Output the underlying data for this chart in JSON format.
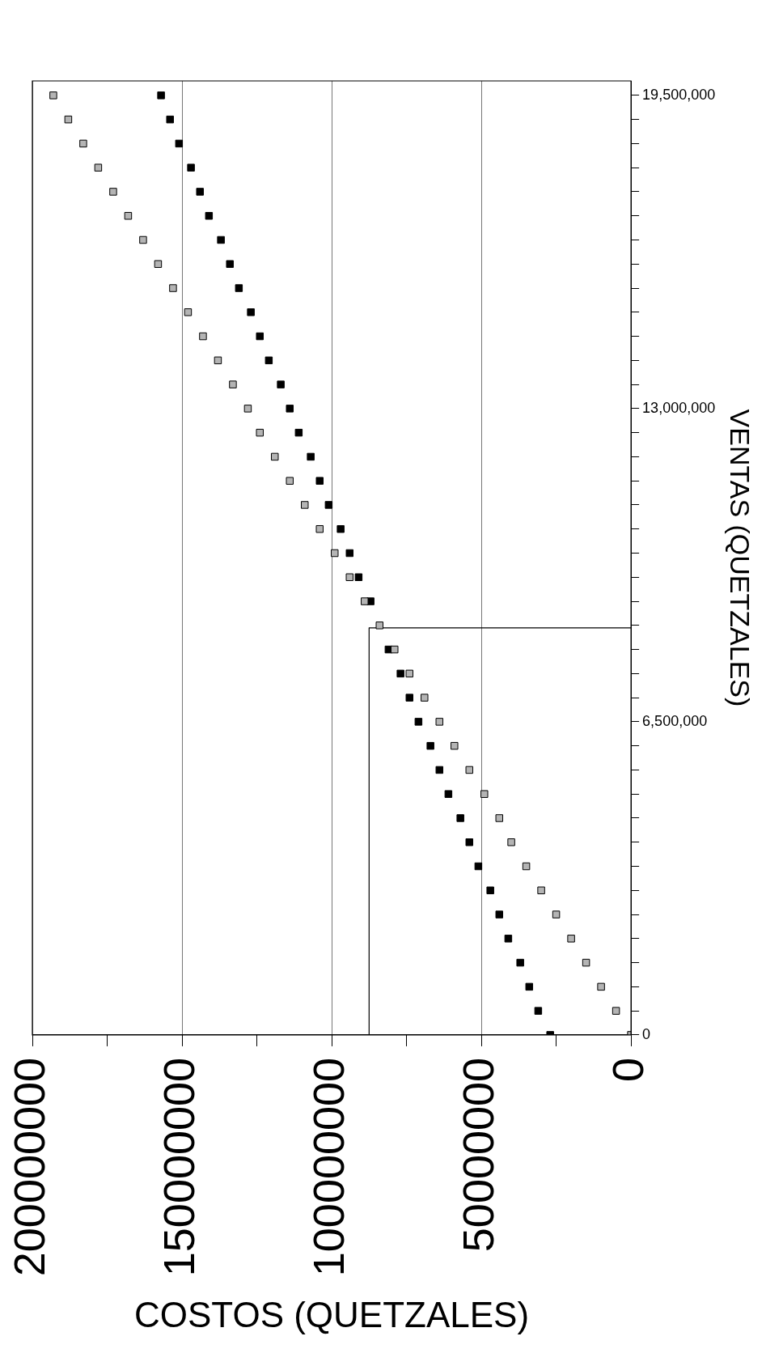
{
  "chart_data": {
    "type": "scatter",
    "xlabel": "COSTOS (QUETZALES)",
    "ylabel": "VENTAS (QUETZALES)",
    "series": [
      {
        "type": "scatter",
        "color": "#b4b4b4",
        "x": [
          0,
          5000000,
          10000000,
          15000000,
          20000000,
          25000000,
          30000000,
          35000000,
          40000000,
          44000000,
          49000000,
          54000000,
          59000000,
          64000000,
          69000000,
          74000000,
          79000000,
          84000000,
          89000000,
          94000000,
          99000000,
          104000000,
          109000000,
          114000000,
          119000000,
          124000000,
          128000000,
          133000000,
          138000000,
          143000000,
          148000000,
          153000000,
          158000000,
          163000000,
          168000000,
          173000000,
          178000000,
          183000000,
          188000000,
          193000000
        ],
        "values": [
          0,
          500000,
          1000000,
          1500000,
          2000000,
          2500000,
          3000000,
          3500000,
          4000000,
          4500000,
          5000000,
          5500000,
          6000000,
          6500000,
          7000000,
          7500000,
          8000000,
          8500000,
          9000000,
          9500000,
          10000000,
          10500000,
          11000000,
          11500000,
          12000000,
          12500000,
          13000000,
          13500000,
          14000000,
          14500000,
          15000000,
          15500000,
          16000000,
          16500000,
          17000000,
          17500000,
          18000000,
          18500000,
          19000000,
          19500000
        ]
      },
      {
        "type": "scatter",
        "color": "#000000",
        "x": [
          27000000,
          31000000,
          34000000,
          37000000,
          41000000,
          44000000,
          47000000,
          51000000,
          54000000,
          57000000,
          61000000,
          64000000,
          67000000,
          71000000,
          74000000,
          77000000,
          81000000,
          84000000,
          87000000,
          91000000,
          94000000,
          97000000,
          101000000,
          104000000,
          107000000,
          111000000,
          114000000,
          117000000,
          121000000,
          124000000,
          127000000,
          131000000,
          134000000,
          137000000,
          141000000,
          144000000,
          147000000,
          151000000,
          154000000,
          157000000
        ],
        "values": [
          0,
          500000,
          1000000,
          1500000,
          2000000,
          2500000,
          3000000,
          3500000,
          4000000,
          4500000,
          5000000,
          5500000,
          6000000,
          6500000,
          7000000,
          7500000,
          8000000,
          null,
          9000000,
          9500000,
          10000000,
          10500000,
          11000000,
          11500000,
          12000000,
          12500000,
          13000000,
          13500000,
          14000000,
          14500000,
          15000000,
          15500000,
          16000000,
          16500000,
          17000000,
          17500000,
          18000000,
          18500000,
          19000000,
          19500000
        ]
      },
      {
        "type": "line",
        "color": "#000000",
        "marker": "none",
        "x": [
          87500000,
          87500000,
          0
        ],
        "values": [
          0,
          8450000,
          8450000
        ]
      }
    ],
    "marker": "square",
    "grid": "x",
    "legend": false,
    "xlim": [
      200000000,
      0
    ],
    "xticks": [
      0,
      {
        "value": 25000000,
        "label": null
      },
      50000000,
      {
        "value": 75000000,
        "label": null
      },
      100000000,
      {
        "value": 125000000,
        "label": null
      },
      150000000,
      {
        "value": 175000000,
        "label": null
      },
      200000000
    ],
    "ylim": [
      0,
      19800000
    ],
    "yticks": [
      0,
      {
        "value": 500000,
        "label": null
      },
      {
        "value": 1000000,
        "label": null
      },
      {
        "value": 1500000,
        "label": null
      },
      {
        "value": 2000000,
        "label": null
      },
      {
        "value": 2500000,
        "label": null
      },
      {
        "value": 3000000,
        "label": null
      },
      {
        "value": 3500000,
        "label": null
      },
      {
        "value": 4000000,
        "label": null
      },
      {
        "value": 4500000,
        "label": null
      },
      {
        "value": 5000000,
        "label": null
      },
      {
        "value": 5500000,
        "label": null
      },
      {
        "value": 6000000,
        "label": null
      },
      {
        "value": 6500000,
        "label": "6,500,000"
      },
      {
        "value": 7000000,
        "label": null
      },
      {
        "value": 7500000,
        "label": null
      },
      {
        "value": 8000000,
        "label": null
      },
      {
        "value": 8500000,
        "label": null
      },
      {
        "value": 9000000,
        "label": null
      },
      {
        "value": 9500000,
        "label": null
      },
      {
        "value": 10000000,
        "label": null
      },
      {
        "value": 10500000,
        "label": null
      },
      {
        "value": 11000000,
        "label": null
      },
      {
        "value": 11500000,
        "label": null
      },
      {
        "value": 12000000,
        "label": null
      },
      {
        "value": 12500000,
        "label": null
      },
      {
        "value": 13000000,
        "label": "13,000,000"
      },
      {
        "value": 13500000,
        "label": null
      },
      {
        "value": 14000000,
        "label": null
      },
      {
        "value": 14500000,
        "label": null
      },
      {
        "value": 15000000,
        "label": null
      },
      {
        "value": 15500000,
        "label": null
      },
      {
        "value": 16000000,
        "label": null
      },
      {
        "value": 16500000,
        "label": null
      },
      {
        "value": 17000000,
        "label": null
      },
      {
        "value": 17500000,
        "label": null
      },
      {
        "value": 18000000,
        "label": null
      },
      {
        "value": 18500000,
        "label": null
      },
      {
        "value": 19000000,
        "label": null
      },
      {
        "value": 19500000,
        "label": "19,500,000"
      }
    ]
  }
}
